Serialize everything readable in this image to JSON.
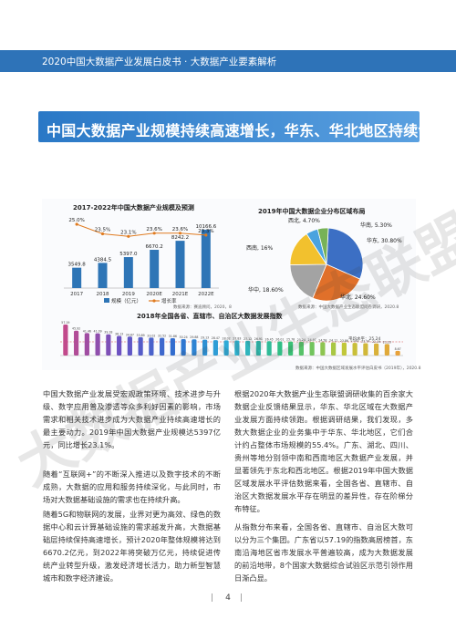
{
  "header": {
    "title": "2020中国大数据产业发展白皮书 · 大数据产业要素解析"
  },
  "headline": "中国大数据产业规模持续高速增长，华东、华北地区持续领跑",
  "bar_line_chart": {
    "title": "2017-2022年中国大数据产业规模及预测",
    "legend": {
      "bar": "规模（亿元）",
      "line": "增长率"
    },
    "source": "数据来源：赛迪顾问，2020，8",
    "colors": {
      "bar": "#2e75b6",
      "line": "#e07b20"
    }
  },
  "pie_chart": {
    "title": "2019年中国大数据企业分布区域布局",
    "source": "数据来源：中国大数据产业生态联盟问卷调研，2020.8",
    "colors": [
      "#3c6fc4",
      "#e0702a",
      "#a3a3a3",
      "#f2c12e",
      "#4aa3df",
      "#77b257"
    ]
  },
  "index_chart": {
    "title": "2018年全国各省、直辖市、自治区大数据发展指数",
    "source": "数据来源：中国大数据区域发展水平评估白皮书（2019年），2020.8",
    "bar_gradient": [
      "#c24a8c",
      "#6a52c4",
      "#2f6fd0",
      "#2fb0d8",
      "#32c07a",
      "#c0c83a",
      "#e8a23a"
    ]
  },
  "chart_data": [
    {
      "type": "bar",
      "title": "2017-2022年中国大数据产业规模及预测",
      "categories": [
        "2017",
        "2018",
        "2019",
        "2020E",
        "2021E",
        "2022E"
      ],
      "series": [
        {
          "name": "规模（亿元）",
          "values": [
            3549.8,
            4384.5,
            5397.0,
            6670.2,
            8242.2,
            10166.6
          ]
        },
        {
          "name": "增长率",
          "values": [
            25.0,
            23.5,
            23.1,
            23.6,
            23.6,
            23.3
          ],
          "unit": "%"
        }
      ],
      "value_labels": [
        "3549.8",
        "4384.5",
        "5397.0",
        "6670.2",
        "8242.2",
        "10166.6"
      ],
      "rate_labels": [
        "25.0%",
        "23.5%",
        "23.1%",
        "23.6%",
        "23.6%",
        "23.3%"
      ]
    },
    {
      "type": "pie",
      "title": "2019年中国大数据企业分布区域布局",
      "categories": [
        "华东",
        "华北",
        "华中",
        "西南",
        "华南",
        "西北"
      ],
      "values": [
        30.8,
        24.6,
        18.6,
        16.0,
        5.3,
        4.7
      ],
      "labels": [
        "华东, 30.80%",
        "华北, 24.60%",
        "华中, 18.60%",
        "西南, 16%",
        "华南, 5.30%",
        "西北, 4.70%"
      ],
      "legend": "none"
    },
    {
      "type": "bar",
      "title": "2018年全国各省、直辖市、自治区大数据发展指数",
      "values": [
        57.19,
        45.92,
        41.46,
        41.09,
        39.18,
        36.13,
        34.87,
        33.89,
        33.02,
        32.52,
        31.86,
        30.24,
        29.88,
        29.13,
        28.47,
        28.02,
        27.83,
        27.12,
        26.91,
        26.45,
        26.01,
        25.78,
        25.24,
        24.97,
        24.58,
        24.11,
        23.86,
        23.41,
        22.74,
        22.19,
        21.23,
        8.67
      ],
      "value_labels": [
        "57.19",
        "45.92",
        "41.46",
        "41.09",
        "39.18",
        "36.13",
        "34.87",
        "33.89",
        "33.02",
        "32.52",
        "31.86",
        "30.24",
        "29.88",
        "29.13",
        "28.47",
        "28.02",
        "27.83",
        "27.12",
        "26.91",
        "26.45",
        "26.01",
        "25.78",
        "25.24",
        "24.97",
        "24.58",
        "24.11",
        "23.86",
        "23.41",
        "22.74",
        "22.19",
        "21.23",
        "8.67"
      ],
      "average_label": "平均水平：25.24"
    }
  ],
  "paragraphs_left": [
    "中国大数据产业发展受宏观政策环境、技术进步与升级、数字应用普及渗透等众多利好因素的影响，市场需求和相关技术进步成为大数据产业持续高速增长的最主要动力。2019年中国大数据产业规模达5397亿元，同比增长23.1%。",
    "随着“互联网+”的不断深入推进以及数字技术的不断成熟，大数据的应用和服务持续深化，与此同时，市场对大数据基础设施的需求也在持续升高。",
    "随着5G和物联网的发展，业界对更为高效、绿色的数据中心和云计算基础设施的需求越发升高，大数据基础层持续保持高速增长，预计2020年整体规模将达到6670.2亿元，到2022年将突破万亿元，持续促进传统产业转型升级，激发经济增长活力，助力新型智慧城市和数字经济建设。"
  ],
  "paragraphs_right": [
    "根据2020年大数据产业生态联盟调研收集的百余家大数据企业反馈结果显示，华东、华北区域在大数据产业发展方面持续领跑。根据调研结果，我们发现，多数大数据企业的业务集中于华东、华北地区，它们合计约占整体市场规模的55.4%。广东、湖北、四川、贵州等地分别领中南和西南地区大数据产业发展，并显著领先于东北和西北地区。根据2019年中国大数据区域发展水平评估数据来看，全国各省、直辖市、自治区大数据发展水平存在明显的差异性，存在阶梯分布特征。",
    "从指数分布来看，全国各省、直辖市、自治区大数可以分为三个集团。广东省以57.19的指数高居榜首，东南沿海地区省市发展水平普遍较高，成为大数据发展的前沿地带，8个国家大数据综合试验区示范引领作用日渐凸显。"
  ],
  "footer": {
    "page_number": "4"
  },
  "watermark": "大数据产业生态联盟"
}
